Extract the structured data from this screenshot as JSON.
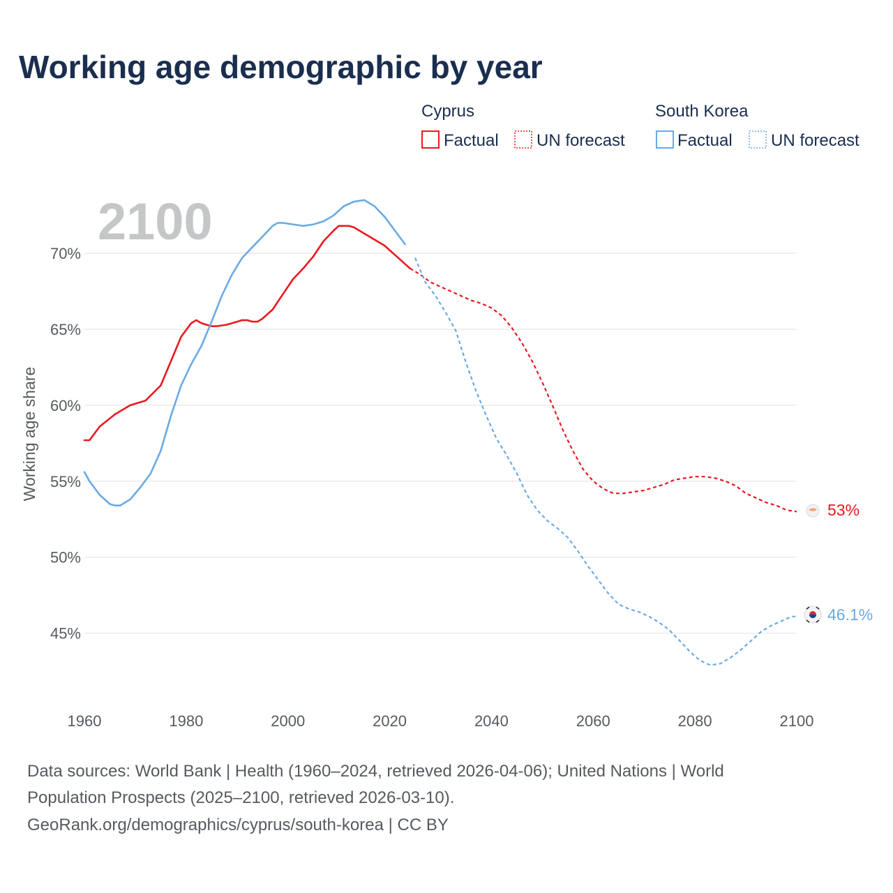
{
  "title": "Working age demographic by year",
  "year_watermark": "2100",
  "legend": {
    "groups": [
      {
        "name": "Cyprus",
        "factual_label": "Factual",
        "forecast_label": "UN forecast",
        "color": "#e8191f"
      },
      {
        "name": "South Korea",
        "factual_label": "Factual",
        "forecast_label": "UN forecast",
        "color": "#6aaae4"
      }
    ]
  },
  "end_labels": {
    "cyprus": "53%",
    "south_korea": "46.1%"
  },
  "icons": {
    "cyprus": "cyprus-flag-icon",
    "south_korea": "south-korea-flag-icon"
  },
  "source_lines": [
    "Data sources: World Bank | Health (1960–2024, retrieved 2026-04-06); United Nations | World",
    "Population Prospects (2025–2100, retrieved 2026-03-10).",
    "GeoRank.org/demographics/cyprus/south-korea | CC BY"
  ],
  "chart_data": {
    "type": "line",
    "title": "Working age demographic by year",
    "xlabel": "",
    "ylabel": "Working age share",
    "x_ticks": [
      1960,
      1980,
      2000,
      2020,
      2040,
      2060,
      2080,
      2100
    ],
    "y_ticks": [
      45,
      50,
      55,
      60,
      65,
      70
    ],
    "y_tick_labels": [
      "45%",
      "50%",
      "55%",
      "60%",
      "65%",
      "70%"
    ],
    "xlim": [
      1960,
      2100
    ],
    "ylim": [
      40.3,
      74.5
    ],
    "grid": true,
    "forecast_start": 2024,
    "series": [
      {
        "name": "Cyprus",
        "color": "#e8191f",
        "points": [
          [
            1960,
            57.7
          ],
          [
            1961,
            57.7
          ],
          [
            1963,
            58.6
          ],
          [
            1966,
            59.4
          ],
          [
            1969,
            60.0
          ],
          [
            1972,
            60.3
          ],
          [
            1975,
            61.3
          ],
          [
            1977,
            62.9
          ],
          [
            1979,
            64.5
          ],
          [
            1981,
            65.4
          ],
          [
            1982,
            65.6
          ],
          [
            1983,
            65.4
          ],
          [
            1985,
            65.2
          ],
          [
            1986,
            65.2
          ],
          [
            1988,
            65.3
          ],
          [
            1990,
            65.5
          ],
          [
            1991,
            65.6
          ],
          [
            1992,
            65.6
          ],
          [
            1993,
            65.5
          ],
          [
            1994,
            65.5
          ],
          [
            1995,
            65.7
          ],
          [
            1997,
            66.3
          ],
          [
            1999,
            67.3
          ],
          [
            2001,
            68.3
          ],
          [
            2003,
            69.0
          ],
          [
            2005,
            69.8
          ],
          [
            2007,
            70.8
          ],
          [
            2009,
            71.5
          ],
          [
            2010,
            71.8
          ],
          [
            2011,
            71.8
          ],
          [
            2012,
            71.8
          ],
          [
            2013,
            71.7
          ],
          [
            2015,
            71.3
          ],
          [
            2017,
            70.9
          ],
          [
            2019,
            70.5
          ],
          [
            2021,
            69.9
          ],
          [
            2023,
            69.3
          ],
          [
            2024,
            69.0
          ],
          [
            2026,
            68.6
          ],
          [
            2028,
            68.1
          ],
          [
            2030,
            67.8
          ],
          [
            2032,
            67.5
          ],
          [
            2034,
            67.2
          ],
          [
            2036,
            66.9
          ],
          [
            2038,
            66.7
          ],
          [
            2040,
            66.4
          ],
          [
            2042,
            65.9
          ],
          [
            2044,
            65.1
          ],
          [
            2046,
            64.1
          ],
          [
            2048,
            62.9
          ],
          [
            2050,
            61.5
          ],
          [
            2052,
            60.0
          ],
          [
            2054,
            58.4
          ],
          [
            2056,
            57.0
          ],
          [
            2058,
            55.8
          ],
          [
            2060,
            55.0
          ],
          [
            2062,
            54.5
          ],
          [
            2064,
            54.2
          ],
          [
            2066,
            54.2
          ],
          [
            2068,
            54.3
          ],
          [
            2070,
            54.4
          ],
          [
            2072,
            54.6
          ],
          [
            2074,
            54.8
          ],
          [
            2076,
            55.1
          ],
          [
            2078,
            55.2
          ],
          [
            2080,
            55.3
          ],
          [
            2082,
            55.3
          ],
          [
            2084,
            55.2
          ],
          [
            2086,
            55.0
          ],
          [
            2088,
            54.7
          ],
          [
            2090,
            54.2
          ],
          [
            2092,
            53.9
          ],
          [
            2094,
            53.6
          ],
          [
            2096,
            53.4
          ],
          [
            2098,
            53.1
          ],
          [
            2100,
            53.0
          ]
        ]
      },
      {
        "name": "South Korea",
        "color": "#6aaae4",
        "points": [
          [
            1960,
            55.6
          ],
          [
            1961,
            55.0
          ],
          [
            1963,
            54.1
          ],
          [
            1965,
            53.5
          ],
          [
            1966,
            53.4
          ],
          [
            1967,
            53.4
          ],
          [
            1969,
            53.8
          ],
          [
            1971,
            54.6
          ],
          [
            1973,
            55.5
          ],
          [
            1975,
            57.0
          ],
          [
            1977,
            59.3
          ],
          [
            1979,
            61.3
          ],
          [
            1981,
            62.7
          ],
          [
            1983,
            63.9
          ],
          [
            1985,
            65.5
          ],
          [
            1987,
            67.2
          ],
          [
            1989,
            68.6
          ],
          [
            1991,
            69.7
          ],
          [
            1993,
            70.4
          ],
          [
            1995,
            71.1
          ],
          [
            1997,
            71.8
          ],
          [
            1998,
            72.0
          ],
          [
            1999,
            72.0
          ],
          [
            2001,
            71.9
          ],
          [
            2003,
            71.8
          ],
          [
            2005,
            71.9
          ],
          [
            2007,
            72.1
          ],
          [
            2009,
            72.5
          ],
          [
            2011,
            73.1
          ],
          [
            2013,
            73.4
          ],
          [
            2015,
            73.5
          ],
          [
            2017,
            73.1
          ],
          [
            2019,
            72.4
          ],
          [
            2021,
            71.5
          ],
          [
            2023,
            70.6
          ],
          [
            2025,
            69.7
          ],
          [
            2027,
            68.1
          ],
          [
            2029,
            67.2
          ],
          [
            2031,
            66.1
          ],
          [
            2033,
            64.9
          ],
          [
            2035,
            62.8
          ],
          [
            2037,
            60.9
          ],
          [
            2039,
            59.3
          ],
          [
            2041,
            57.8
          ],
          [
            2043,
            56.7
          ],
          [
            2045,
            55.5
          ],
          [
            2047,
            54.1
          ],
          [
            2049,
            53.1
          ],
          [
            2051,
            52.4
          ],
          [
            2053,
            51.9
          ],
          [
            2055,
            51.3
          ],
          [
            2057,
            50.4
          ],
          [
            2059,
            49.4
          ],
          [
            2061,
            48.5
          ],
          [
            2063,
            47.6
          ],
          [
            2065,
            46.9
          ],
          [
            2067,
            46.6
          ],
          [
            2069,
            46.4
          ],
          [
            2071,
            46.1
          ],
          [
            2073,
            45.7
          ],
          [
            2075,
            45.2
          ],
          [
            2077,
            44.5
          ],
          [
            2079,
            43.8
          ],
          [
            2081,
            43.2
          ],
          [
            2083,
            42.9
          ],
          [
            2085,
            43.0
          ],
          [
            2087,
            43.4
          ],
          [
            2089,
            43.9
          ],
          [
            2091,
            44.5
          ],
          [
            2093,
            45.1
          ],
          [
            2095,
            45.5
          ],
          [
            2097,
            45.8
          ],
          [
            2099,
            46.1
          ],
          [
            2100,
            46.1
          ]
        ]
      }
    ]
  }
}
